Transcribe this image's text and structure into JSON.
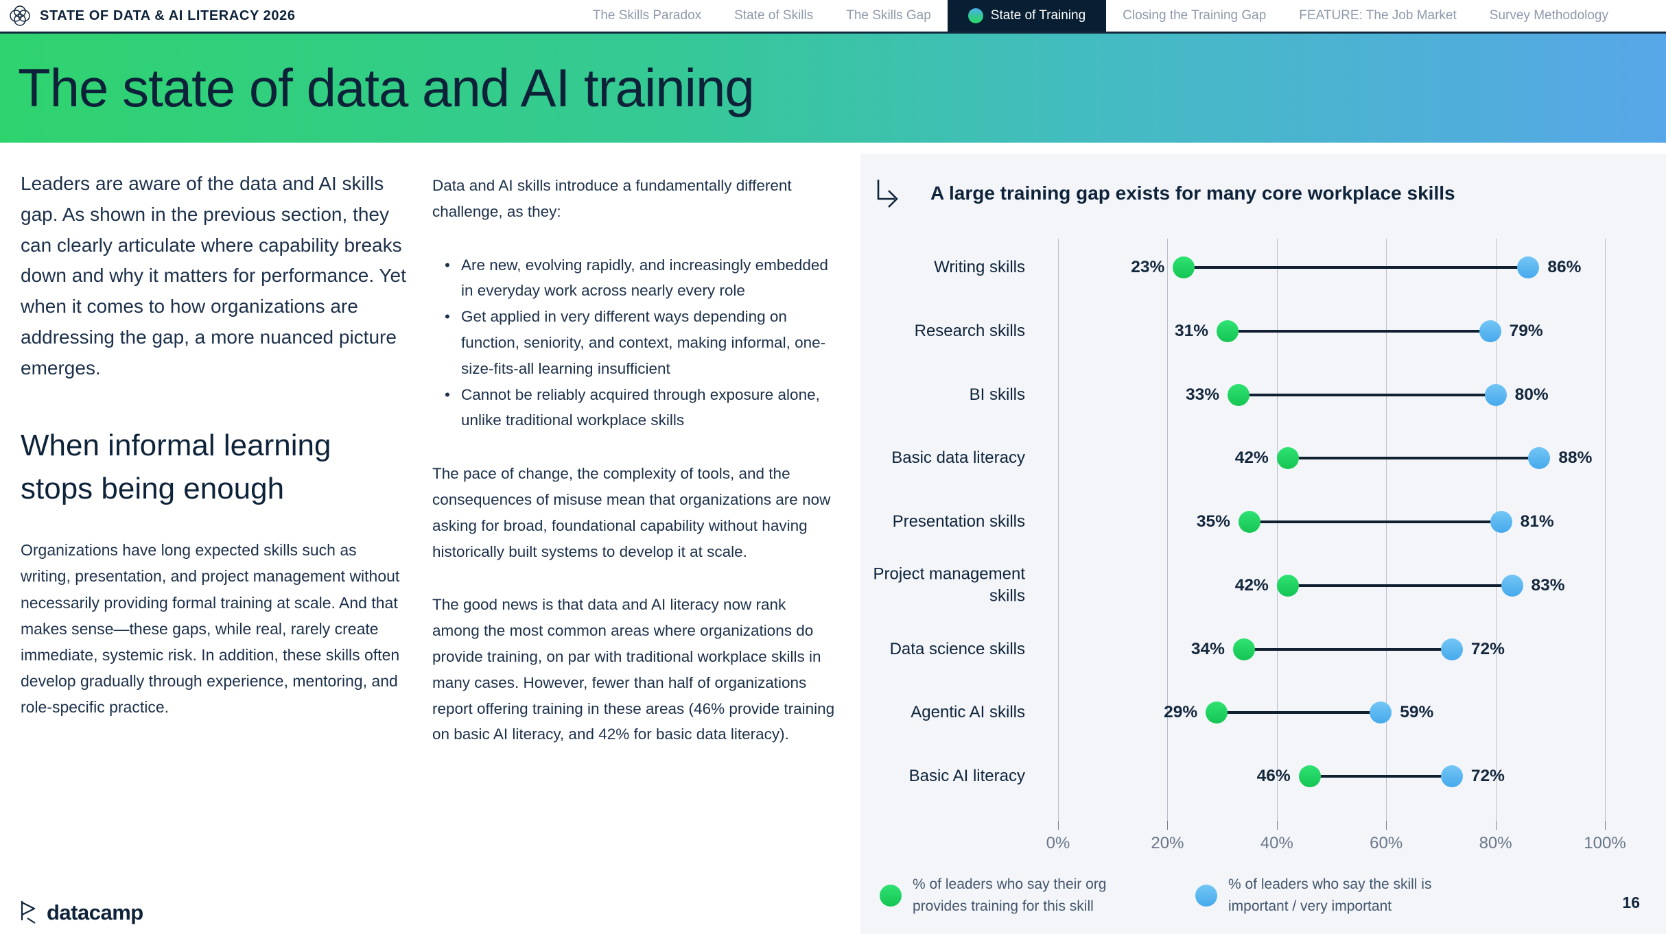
{
  "header": {
    "brand": "STATE OF DATA & AI LITERACY 2026",
    "nav": [
      {
        "label": "The Skills Paradox",
        "active": false
      },
      {
        "label": "State of Skills",
        "active": false
      },
      {
        "label": "The Skills Gap",
        "active": false
      },
      {
        "label": "State of Training",
        "active": true
      },
      {
        "label": "Closing the Training Gap",
        "active": false
      },
      {
        "label": "FEATURE: The Job Market",
        "active": false
      },
      {
        "label": "Survey Methodology",
        "active": false
      }
    ]
  },
  "banner": {
    "title": "The state of data and AI training",
    "gradient_left": "#2fd36e",
    "gradient_right": "#57a7e8"
  },
  "left_column": {
    "intro": "Leaders are aware of the data and AI skills gap. As shown in the previous section, they can clearly articulate where capability breaks down and why it matters for performance. Yet when it comes to how organizations are addressing the gap, a more nuanced picture emerges.",
    "heading": "When informal learning stops being enough",
    "body": "Organizations have long expected skills such as writing, presentation, and project management without necessarily providing formal training at scale. And that makes sense—these gaps, while real, rarely create immediate, systemic risk. In addition, these skills often develop gradually through experience, mentoring, and role-specific practice."
  },
  "middle_column": {
    "lead": "Data and AI skills introduce a fundamentally different challenge, as they:",
    "bullets": [
      "Are new, evolving rapidly, and increasingly embedded in everyday work across nearly every role",
      "Get applied in very different ways depending on function, seniority, and context, making informal, one-size-fits-all learning insufficient",
      "Cannot be reliably acquired through exposure alone, unlike traditional workplace skills"
    ],
    "para1": "The pace of change, the complexity of tools, and the consequences of misuse mean that organizations are now asking for broad, foundational capability without having historically built systems to develop it at scale.",
    "para2": "The good news is that data and AI literacy now rank among the most common areas where organizations do provide training, on par with traditional workplace skills in many cases. However, fewer than half of organizations report offering training in these areas (46% provide training on basic AI literacy, and 42% for basic data literacy)."
  },
  "chart_panel": {
    "title": "A large training gap exists for many core workplace skills",
    "background": "#f3f5f9"
  },
  "chart_data": {
    "type": "dumbbell",
    "title": "A large training gap exists for many core workplace skills",
    "categories": [
      "Writing skills",
      "Research skills",
      "BI skills",
      "Basic data literacy",
      "Presentation skills",
      "Project management skills",
      "Data science skills",
      "Agentic AI skills",
      "Basic AI literacy"
    ],
    "series": [
      {
        "name": "% of leaders who say their org provides training for this skill",
        "color": "#1fce60",
        "values": [
          23,
          31,
          33,
          42,
          35,
          42,
          34,
          29,
          46
        ]
      },
      {
        "name": "% of leaders who say the skill is important / very important",
        "color": "#55b4ef",
        "values": [
          86,
          79,
          80,
          88,
          81,
          83,
          72,
          59,
          72
        ]
      }
    ],
    "xlim": [
      0,
      100
    ],
    "x_ticks": [
      "0%",
      "20%",
      "40%",
      "60%",
      "80%",
      "100%"
    ],
    "grid": "vertical",
    "legend_position": "bottom"
  },
  "footer": {
    "logo_text": "datacamp",
    "page_number": "16"
  }
}
